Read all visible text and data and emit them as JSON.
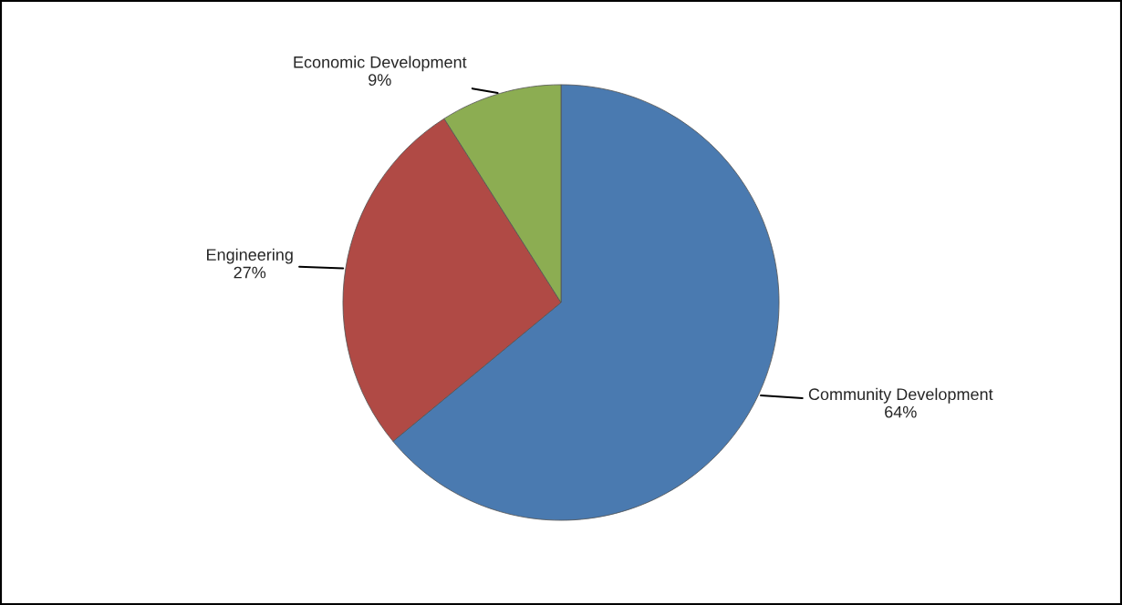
{
  "chart_data": {
    "type": "pie",
    "categories": [
      "Community Development",
      "Engineering",
      "Economic Development"
    ],
    "values": [
      64,
      27,
      9
    ],
    "colors": [
      "#4a7ab0",
      "#b04a45",
      "#8cad52"
    ],
    "value_labels": [
      "64%",
      "27%",
      "9%"
    ]
  }
}
